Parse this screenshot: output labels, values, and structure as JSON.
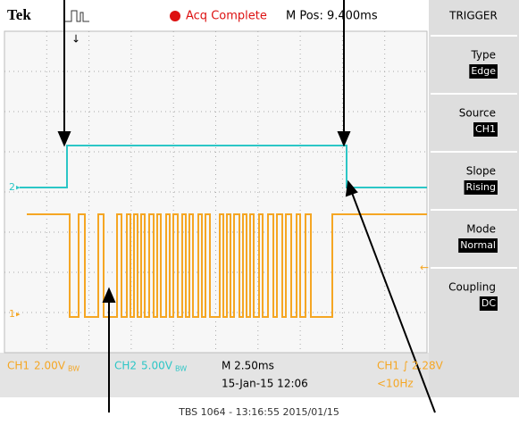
{
  "header": {
    "brand": "Tek",
    "status": "Acq Complete",
    "position": "M Pos: 9.400ms"
  },
  "menu": {
    "title": "TRIGGER",
    "items": [
      {
        "label": "Type",
        "value": "Edge"
      },
      {
        "label": "Source",
        "value": "CH1"
      },
      {
        "label": "Slope",
        "value": "Rising"
      },
      {
        "label": "Mode",
        "value": "Normal"
      },
      {
        "label": "Coupling",
        "value": "DC"
      }
    ]
  },
  "channel_markers": [
    "2",
    "1"
  ],
  "status": {
    "ch1": "CH1",
    "ch1_scale": "2.00V",
    "ch2": "CH2",
    "ch2_scale": "5.00V",
    "bandwidth": "BW",
    "timebase": "M 2.50ms",
    "date": "15-Jan-15 12:06",
    "trigger": "CH1 ∫ 2.28V",
    "frequency": "<10Hz"
  },
  "footer": "TBS 1064 - 13:16:55  2015/01/15"
}
